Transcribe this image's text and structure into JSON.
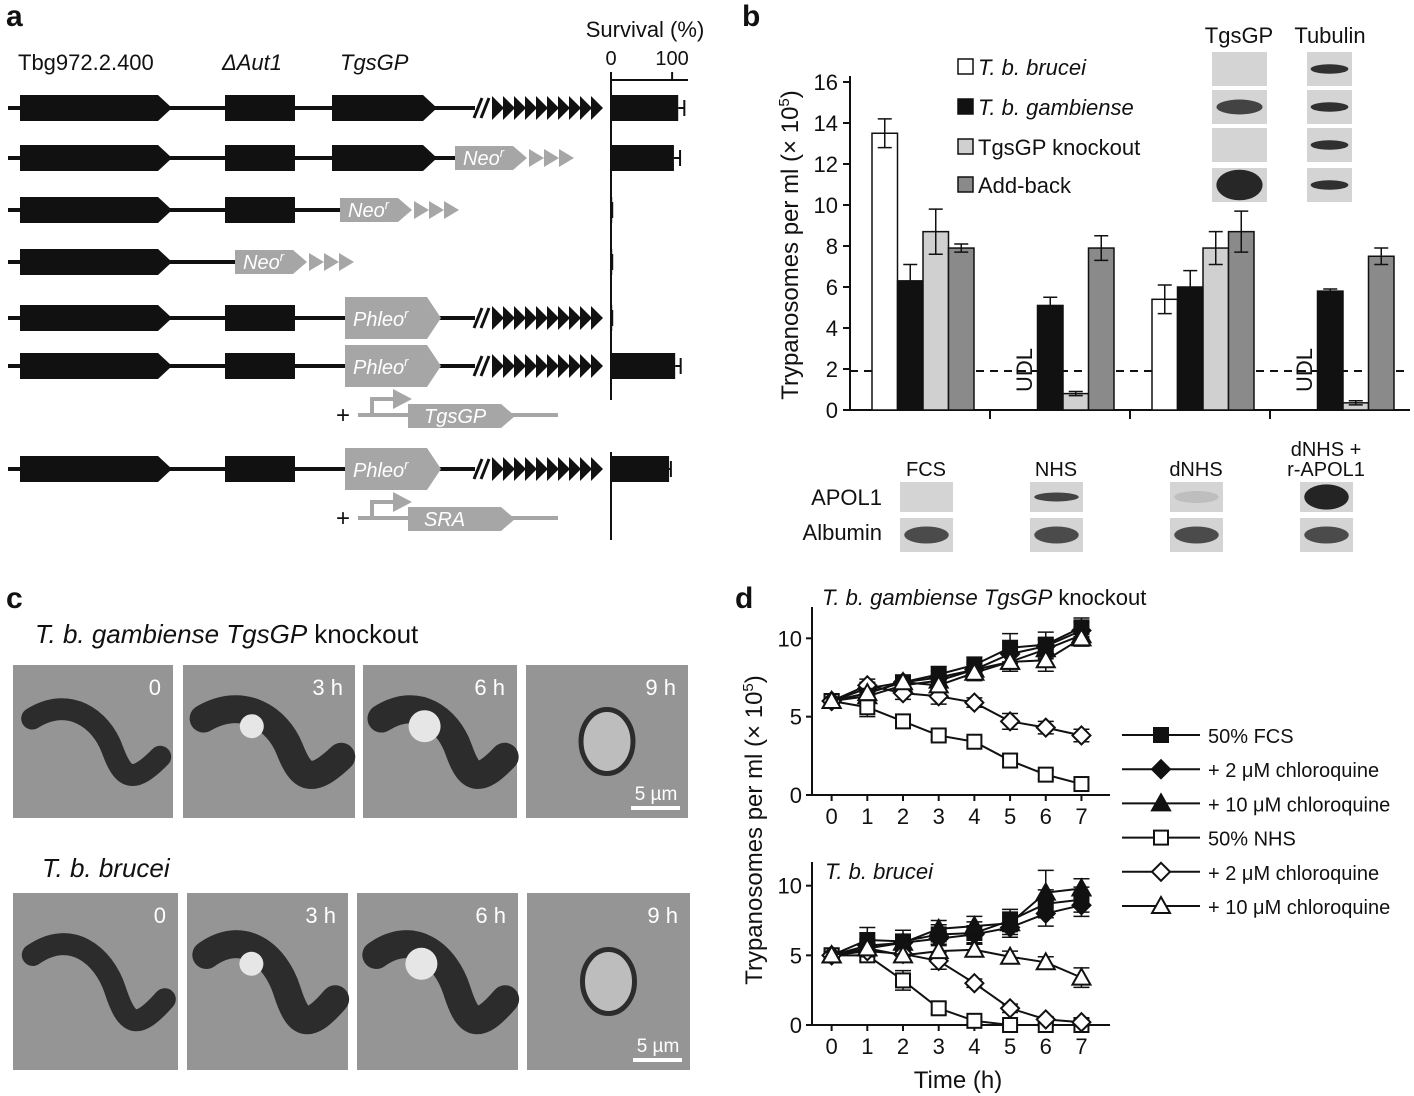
{
  "panel_labels": [
    "a",
    "b",
    "c",
    "d"
  ],
  "panel_a": {
    "gene_labels": [
      "Tbg972.2.400",
      "ΔAut1",
      "TgsGP"
    ],
    "markers": {
      "neo": "Neo",
      "phleo": "Phleo",
      "superscript": "r"
    },
    "plus": "+",
    "addback_genes": [
      "TgsGP",
      "SRA"
    ]
  },
  "blots": {
    "columns": [
      "TgsGP",
      "Tubulin"
    ],
    "rows": [
      "APOL1",
      "Albumin"
    ]
  },
  "micrographs": [
    {
      "title": [
        "T. b. gambiense TgsGP",
        "knockout"
      ],
      "times": [
        "0",
        "3 h",
        "6 h",
        "9 h"
      ],
      "scale_bar": "5 µm"
    },
    {
      "title": [
        "T. b. brucei"
      ],
      "times": [
        "0",
        "3 h",
        "6 h",
        "9 h"
      ],
      "scale_bar": "5 µm"
    }
  ],
  "chart_data": [
    {
      "type": "bar",
      "orientation": "horizontal",
      "title": "Survival (%)",
      "color": "#111111",
      "values": [
        110,
        103,
        2,
        2,
        2,
        105,
        95
      ],
      "errors": [
        10,
        10,
        0,
        0,
        0,
        9,
        3
      ],
      "xlim": [
        0,
        126
      ],
      "xticks": [
        0,
        100
      ]
    },
    {
      "type": "bar",
      "orientation": "vertical",
      "ylabel": [
        "Trypanosomes per ml (× 10",
        "5",
        ")"
      ],
      "categories": [
        [
          "FCS"
        ],
        [
          "NHS"
        ],
        [
          "dNHS"
        ],
        [
          "dNHS +",
          "r-APOL1"
        ]
      ],
      "series": [
        {
          "name": "T. b. brucei",
          "italic": true,
          "color": "#ffffff",
          "values": [
            13.5,
            null,
            5.4,
            null
          ],
          "errors": [
            0.7,
            null,
            0.7,
            null
          ],
          "value_labels": [
            null,
            "UDL",
            null,
            "UDL"
          ]
        },
        {
          "name": "T. b. gambiense",
          "italic": true,
          "color": "#111111",
          "values": [
            6.3,
            5.1,
            6.0,
            5.8
          ],
          "errors": [
            0.8,
            0.4,
            0.8,
            0.1
          ]
        },
        {
          "name": "TgsGP knockout",
          "italic": false,
          "color": "#d0d0d0",
          "values": [
            8.7,
            0.8,
            7.9,
            0.35
          ],
          "errors": [
            1.1,
            0.1,
            0.8,
            0.1
          ]
        },
        {
          "name": "Add-back",
          "italic": false,
          "color": "#8a8a8a",
          "values": [
            7.9,
            7.9,
            8.7,
            7.5
          ],
          "errors": [
            0.2,
            0.6,
            1.0,
            0.4
          ]
        }
      ],
      "ylim": [
        0,
        16
      ],
      "yticks": [
        0,
        2,
        4,
        6,
        8,
        10,
        12,
        14,
        16
      ],
      "detection_limit": 1.9
    },
    {
      "type": "line",
      "title": [
        "T. b. gambiense TgsGP",
        "knockout"
      ],
      "ylabel": [
        "Trypanosomes per ml (× 10",
        "5",
        ")"
      ],
      "x": [
        0,
        1,
        2,
        3,
        4,
        5,
        6,
        7
      ],
      "xlim": [
        -0.55,
        7.8
      ],
      "xticks": [
        0,
        1,
        2,
        3,
        4,
        5,
        6,
        7
      ],
      "ylim": [
        0,
        12
      ],
      "yticks": [
        0,
        5,
        10
      ],
      "series": [
        {
          "name": "50% FCS",
          "marker": "square",
          "filled": true,
          "color": "#111111",
          "values": [
            6,
            6.5,
            7.2,
            7.7,
            8.3,
            9.4,
            9.6,
            10.7
          ],
          "errors": [
            0.2,
            0.4,
            0.4,
            0.5,
            0.5,
            0.9,
            0.8,
            0.6
          ]
        },
        {
          "name": "+ 2 μM chloroquine",
          "marker": "diamond",
          "filled": true,
          "color": "#111111",
          "values": [
            6,
            6.8,
            7.2,
            7.5,
            8.0,
            9.0,
            9.5,
            10.5
          ],
          "errors": [
            0.2,
            0.4,
            0.3,
            0.4,
            0.5,
            0.6,
            0.5,
            0.5
          ]
        },
        {
          "name": "+ 10 μM chloroquine",
          "marker": "triangle",
          "filled": true,
          "color": "#111111",
          "values": [
            6,
            6.3,
            7.0,
            7.3,
            8.0,
            8.5,
            9.3,
            10.2
          ],
          "errors": [
            0.2,
            0.3,
            0.3,
            0.4,
            0.4,
            0.6,
            0.6,
            0.5
          ]
        },
        {
          "name": "50% NHS",
          "marker": "square",
          "filled": false,
          "color": "#111111",
          "values": [
            6,
            5.6,
            4.7,
            3.8,
            3.4,
            2.2,
            1.3,
            0.7
          ],
          "errors": [
            0.2,
            0.6,
            0.4,
            0.3,
            0.3,
            0.4,
            0.3,
            0.3
          ]
        },
        {
          "name": "+ 2 μM chloroquine",
          "marker": "diamond",
          "filled": false,
          "color": "#111111",
          "values": [
            6,
            7.0,
            6.5,
            6.3,
            5.9,
            4.7,
            4.3,
            3.8
          ],
          "errors": [
            0.2,
            0.4,
            0.4,
            0.5,
            0.3,
            0.5,
            0.4,
            0.4
          ]
        },
        {
          "name": "+ 10 μM chloroquine",
          "marker": "triangle",
          "filled": false,
          "color": "#111111",
          "values": [
            6,
            6.5,
            7.2,
            7.0,
            7.8,
            8.5,
            8.6,
            10.0
          ],
          "errors": [
            0.2,
            0.3,
            0.3,
            0.4,
            0.5,
            0.6,
            0.7,
            0.5
          ]
        }
      ]
    },
    {
      "type": "line",
      "title": [
        "T. b. brucei"
      ],
      "xlabel": "Time (h)",
      "x": [
        0,
        1,
        2,
        3,
        4,
        5,
        6,
        7
      ],
      "xlim": [
        -0.55,
        7.8
      ],
      "xticks": [
        0,
        1,
        2,
        3,
        4,
        5,
        6,
        7
      ],
      "ylim": [
        0,
        11.7
      ],
      "yticks": [
        0,
        5,
        10
      ],
      "series": [
        {
          "marker": "square",
          "filled": true,
          "color": "#111111",
          "values": [
            5,
            6.1,
            6.0,
            6.5,
            6.6,
            7.5,
            8.7,
            9.0
          ],
          "errors": [
            0.2,
            0.9,
            0.8,
            0.7,
            0.8,
            0.8,
            1.0,
            0.9
          ]
        },
        {
          "marker": "diamond",
          "filled": true,
          "color": "#111111",
          "values": [
            5,
            5.7,
            5.9,
            6.2,
            6.5,
            7.0,
            8.0,
            8.6
          ],
          "errors": [
            0.2,
            0.5,
            0.5,
            0.5,
            0.6,
            0.7,
            0.9,
            0.8
          ]
        },
        {
          "marker": "triangle",
          "filled": true,
          "color": "#111111",
          "values": [
            5,
            5.5,
            5.9,
            6.9,
            7.1,
            7.3,
            9.5,
            9.8
          ],
          "errors": [
            0.2,
            0.5,
            0.6,
            0.6,
            0.7,
            0.8,
            1.6,
            0.7
          ]
        },
        {
          "marker": "square",
          "filled": false,
          "color": "#111111",
          "values": [
            5,
            5.0,
            3.2,
            1.2,
            0.3,
            0,
            0,
            0
          ],
          "errors": [
            0.2,
            0.4,
            0.7,
            0.4,
            0.2,
            0.2,
            0.1,
            0.1
          ]
        },
        {
          "marker": "diamond",
          "filled": false,
          "color": "#111111",
          "values": [
            5,
            5.3,
            5.1,
            4.6,
            3.0,
            1.2,
            0.4,
            0.2
          ],
          "errors": [
            0.2,
            0.4,
            0.5,
            0.6,
            0.3,
            0.3,
            0.2,
            0.1
          ]
        },
        {
          "marker": "triangle",
          "filled": false,
          "color": "#111111",
          "values": [
            5,
            5.5,
            5.0,
            5.3,
            5.4,
            4.9,
            4.5,
            3.4
          ],
          "errors": [
            0.2,
            0.4,
            0.5,
            0.5,
            0.4,
            0.4,
            0.4,
            0.7
          ]
        }
      ]
    }
  ]
}
